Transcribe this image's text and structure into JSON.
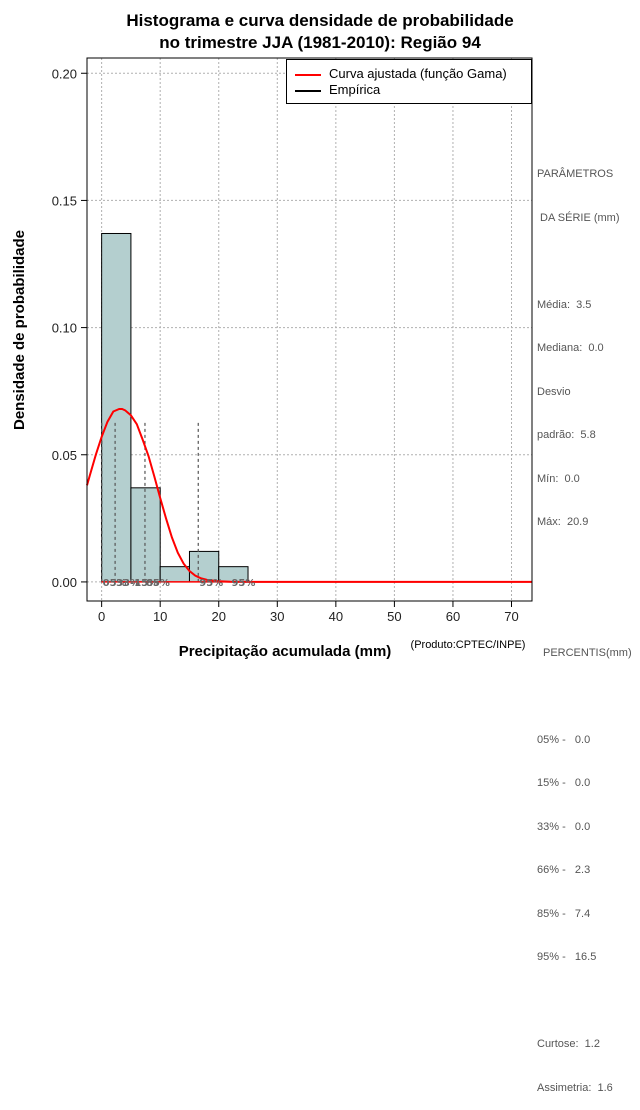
{
  "title_line1": "Histograma e curva densidade de probabilidade",
  "title_line2": "no trimestre JJA (1981-2010): Região 94",
  "x_axis_label": "Precipitação acumulada (mm)",
  "y_axis_label": "Densidade de probabilidade",
  "product_label": "(Produto:CPTEC/INPE)",
  "legend": {
    "curve_label": "Curva ajustada (função Gama)",
    "empirical_label": "Empírica",
    "curve_color": "#ff0000",
    "empirical_color": "#000000"
  },
  "stats": {
    "header1": "PARÂMETROS",
    "header2": " DA SÉRIE (mm)",
    "lines": [
      "Média:  3.5",
      "Mediana:  0.0",
      "Desvio",
      "padrão:  5.8",
      "Mín:  0.0",
      "Máx:  20.9"
    ],
    "percentis_header": "PERCENTIS(mm)",
    "percentis": [
      "05% -   0.0",
      "15% -   0.0",
      "33% -   0.0",
      "66% -   2.3",
      "85% -   7.4",
      "95% -   16.5"
    ],
    "shape": [
      "Curtose:  1.2",
      "Assimetria:  1.6"
    ]
  },
  "chart_data": {
    "type": "bar",
    "title": "Histograma e curva densidade de probabilidade no trimestre JJA (1981-2010): Região 94",
    "xlabel": "Precipitação acumulada (mm)",
    "ylabel": "Densidade de probabilidade",
    "xlim": [
      -2.5,
      73.5
    ],
    "ylim": [
      -0.0075,
      0.206
    ],
    "x_ticks": [
      0,
      10,
      20,
      30,
      40,
      50,
      60,
      70
    ],
    "y_ticks": [
      0.0,
      0.05,
      0.1,
      0.15,
      0.2
    ],
    "y_tick_labels": [
      "0.00",
      "0.05",
      "0.10",
      "0.15",
      "0.20"
    ],
    "grid": true,
    "bar_color": "#b4cfcf",
    "bins": [
      {
        "start": 0,
        "end": 5,
        "density": 0.137
      },
      {
        "start": 5,
        "end": 10,
        "density": 0.037
      },
      {
        "start": 10,
        "end": 15,
        "density": 0.006
      },
      {
        "start": 15,
        "end": 20,
        "density": 0.012
      },
      {
        "start": 20,
        "end": 25,
        "density": 0.006
      }
    ],
    "curve": {
      "name": "Curva ajustada (função Gama)",
      "color": "#ff0000",
      "x": [
        -2.5,
        -2,
        -1,
        0,
        1,
        2,
        3,
        3.5,
        4,
        5,
        6,
        7,
        8,
        9,
        10,
        11,
        12,
        13,
        14,
        15,
        16,
        17,
        18,
        20,
        22,
        25,
        30,
        40,
        73.5
      ],
      "y": [
        0.038,
        0.042,
        0.05,
        0.057,
        0.063,
        0.067,
        0.068,
        0.068,
        0.0675,
        0.0655,
        0.062,
        0.056,
        0.0495,
        0.0415,
        0.033,
        0.025,
        0.0175,
        0.0115,
        0.0072,
        0.0043,
        0.0025,
        0.0014,
        0.0008,
        0.0003,
        0.0001,
        0.0,
        0.0,
        0.0,
        0.0
      ]
    },
    "percentile_markers": [
      {
        "label": "05%",
        "value": 0.0
      },
      {
        "label": "15%",
        "value": 0.0
      },
      {
        "label": "33%",
        "value": 0.0
      },
      {
        "label": "66%",
        "value": 2.3
      },
      {
        "label": "85%",
        "value": 7.4
      },
      {
        "label": "95%",
        "value": 16.5
      }
    ],
    "percentile_text_spans": [
      {
        "text": "05% -15%",
        "x": 0.0
      },
      {
        "text": "33%",
        "x": 2.3
      },
      {
        "text": "85%",
        "x": 7.4
      },
      {
        "text": "95%",
        "x": 16.5
      },
      {
        "text": "95%",
        "x": 22.0
      }
    ]
  }
}
